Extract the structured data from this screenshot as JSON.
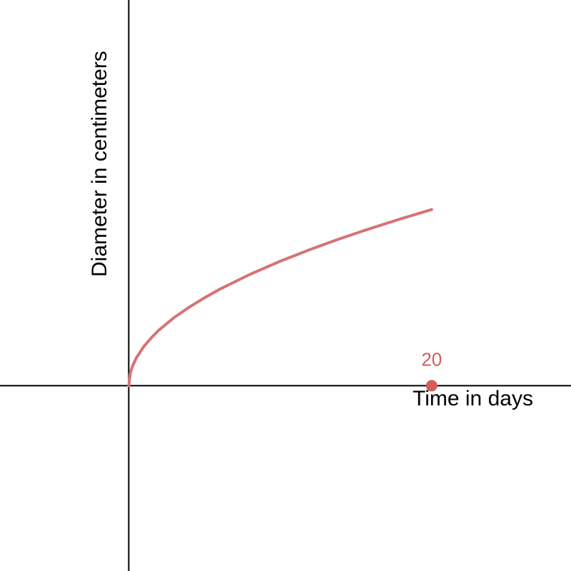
{
  "chart_data": {
    "type": "line",
    "title": "",
    "xlabel": "Time in days",
    "ylabel": "Diameter in centimeters",
    "grid": false,
    "xlim": [
      -8.5,
      29.2
    ],
    "ylim": [
      -12.2,
      25.4
    ],
    "series": [
      {
        "color": "#d77274",
        "x": [
          0,
          0.1,
          0.25,
          0.5,
          1,
          1.5,
          2,
          3,
          4,
          5,
          6,
          8,
          10,
          12,
          14,
          16,
          18,
          20
        ],
        "y": [
          0,
          0.82,
          1.3,
          1.83,
          2.59,
          3.17,
          3.67,
          4.49,
          5.18,
          5.79,
          6.35,
          7.33,
          8.2,
          8.98,
          9.7,
          10.37,
          11.0,
          11.6
        ]
      }
    ],
    "points": [
      {
        "x": 20,
        "y": 0,
        "label": "20",
        "color": "#d15e5c"
      }
    ]
  }
}
